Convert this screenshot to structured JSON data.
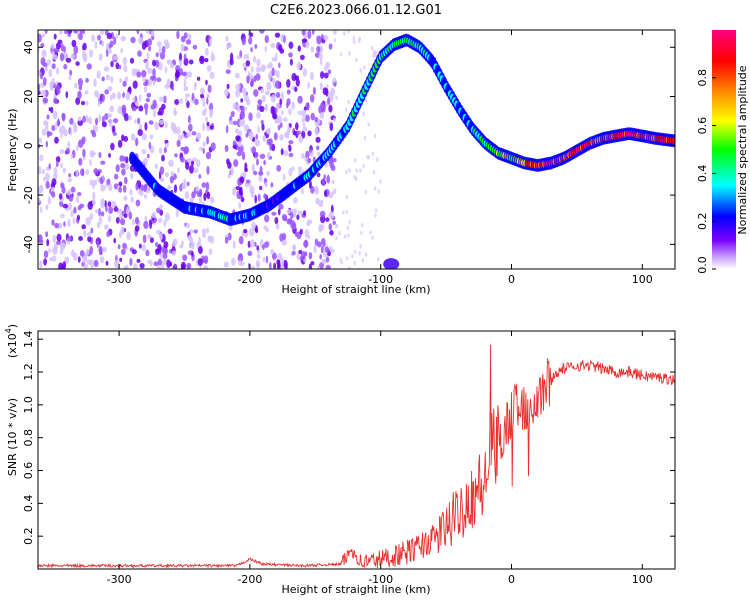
{
  "title": "C2E6.2023.066.01.12.G01",
  "chart_data": [
    {
      "type": "heatmap",
      "xlabel": "Height of straight line (km)",
      "ylabel": "Frequency (Hz)",
      "xlim": [
        -362,
        125
      ],
      "ylim": [
        -50,
        47
      ],
      "xticks": [
        -300,
        -200,
        -100,
        0,
        100
      ],
      "xtick_labels": [
        "-300",
        "-200",
        "-100",
        "0",
        "100"
      ],
      "yticks": [
        -40,
        -20,
        0,
        20,
        40
      ],
      "ytick_labels": [
        "-40",
        "-20",
        "0",
        "20",
        "40"
      ],
      "colorbar": {
        "label": "Normalized spectral amplitude",
        "range": [
          0.0,
          1.0
        ],
        "ticks": [
          0.0,
          0.2,
          0.4,
          0.6,
          0.8
        ],
        "tick_labels": [
          "0.0",
          "0.2",
          "0.4",
          "0.6",
          "0.8"
        ],
        "colors": [
          "#ffffff",
          "#c8a0ff",
          "#7a00ff",
          "#0000ff",
          "#00ffff",
          "#00ff00",
          "#ffff00",
          "#ff8000",
          "#ff0000",
          "#ff0080"
        ]
      },
      "ridge": {
        "x": [
          -290,
          -270,
          -250,
          -230,
          -215,
          -200,
          -185,
          -170,
          -155,
          -140,
          -125,
          -110,
          -100,
          -90,
          -80,
          -70,
          -60,
          -50,
          -40,
          -30,
          -20,
          -10,
          0,
          10,
          20,
          30,
          40,
          50,
          60,
          70,
          80,
          90,
          100,
          110,
          125
        ],
        "y": [
          -5,
          -18,
          -25,
          -27,
          -30,
          -28,
          -24,
          -18,
          -12,
          -3,
          8,
          25,
          36,
          41,
          43,
          40,
          34,
          24,
          15,
          7,
          1,
          -3,
          -5,
          -7,
          -8,
          -7,
          -5,
          -2,
          1,
          3,
          4,
          5,
          4,
          3,
          2
        ],
        "amplitude": [
          0.35,
          0.35,
          0.35,
          0.45,
          0.45,
          0.4,
          0.3,
          0.35,
          0.4,
          0.45,
          0.45,
          0.5,
          0.5,
          0.55,
          0.55,
          0.5,
          0.45,
          0.4,
          0.4,
          0.45,
          0.5,
          0.6,
          0.7,
          0.8,
          0.9,
          0.9,
          0.9,
          0.95,
          0.95,
          0.95,
          0.95,
          0.95,
          0.95,
          0.9,
          0.9
        ]
      }
    },
    {
      "type": "line",
      "xlabel": "Height of straight line (km)",
      "ylabel": "SNR (10 * v/v)",
      "yscale_label": "(x10",
      "yscale_exp": "4",
      "xlim": [
        -362,
        125
      ],
      "ylim": [
        0,
        1.45
      ],
      "xticks": [
        -300,
        -200,
        -100,
        0,
        100
      ],
      "xtick_labels": [
        "-300",
        "-200",
        "-100",
        "0",
        "100"
      ],
      "yticks": [
        0.2,
        0.4,
        0.6,
        0.8,
        1.0,
        1.2,
        1.4
      ],
      "ytick_labels": [
        "0.2",
        "0.4",
        "0.6",
        "0.8",
        "1.0",
        "1.2",
        "1.4"
      ],
      "series": [
        {
          "color": "#e83030",
          "x": [
            -362,
            -300,
            -280,
            -250,
            -210,
            -200,
            -190,
            -160,
            -130,
            -122,
            -115,
            -100,
            -90,
            -80,
            -70,
            -60,
            -50,
            -40,
            -30,
            -25,
            -20,
            -15,
            -10,
            -5,
            0,
            10,
            20,
            30,
            35,
            40,
            50,
            60,
            70,
            80,
            90,
            100,
            110,
            120,
            125
          ],
          "y": [
            0.02,
            0.02,
            0.02,
            0.02,
            0.02,
            0.06,
            0.03,
            0.02,
            0.03,
            0.12,
            0.04,
            0.06,
            0.08,
            0.1,
            0.14,
            0.18,
            0.25,
            0.35,
            0.45,
            0.5,
            0.5,
            0.7,
            0.78,
            0.85,
            0.95,
            1.0,
            1.05,
            1.15,
            1.2,
            1.22,
            1.24,
            1.24,
            1.22,
            1.2,
            1.2,
            1.18,
            1.17,
            1.16,
            1.15
          ]
        }
      ]
    }
  ]
}
